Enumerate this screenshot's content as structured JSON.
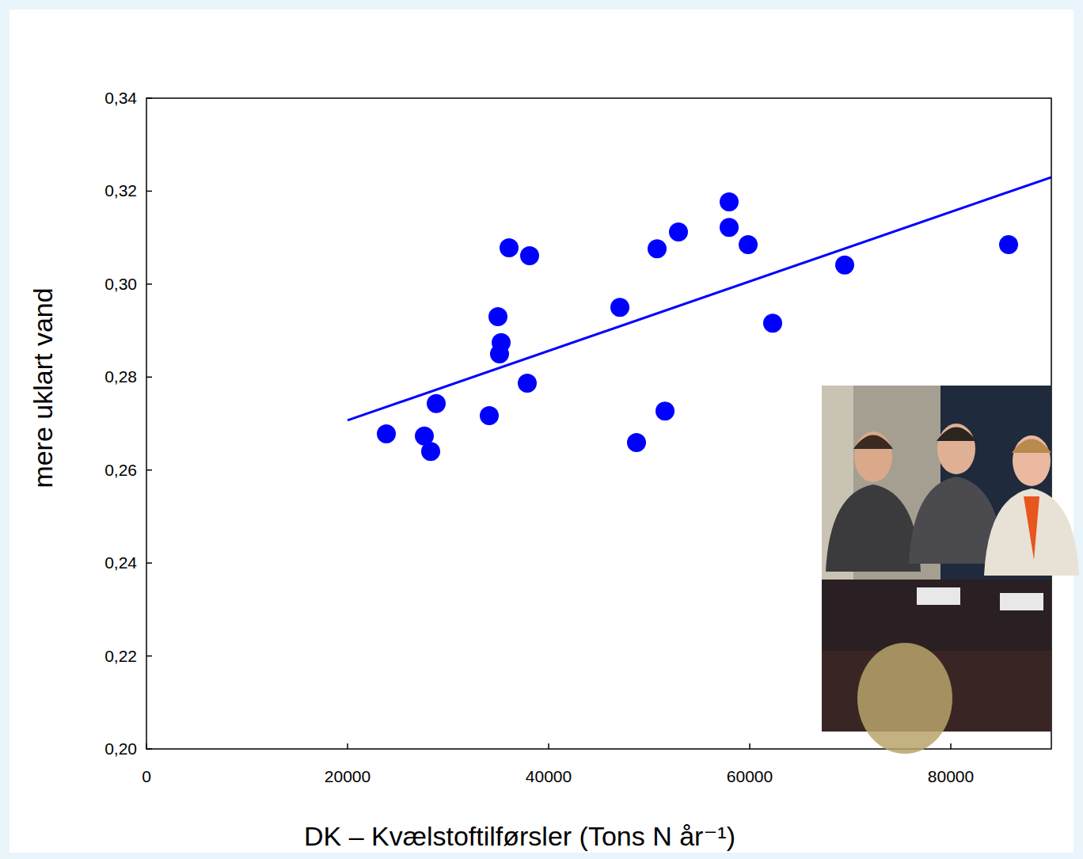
{
  "chart_data": {
    "type": "scatter",
    "x_label": "DK – Kvælstoftilførsler (Tons N år⁻¹)",
    "y_label": "mere uklart vand",
    "xlim": [
      0,
      90000
    ],
    "ylim": [
      0.2,
      0.34
    ],
    "xticks": [
      0,
      20000,
      40000,
      60000,
      80000
    ],
    "yticks": [
      {
        "value": 0.2,
        "label": "0,20"
      },
      {
        "value": 0.22,
        "label": "0,22"
      },
      {
        "value": 0.24,
        "label": "0,24"
      },
      {
        "value": 0.26,
        "label": "0,26"
      },
      {
        "value": 0.28,
        "label": "0,28"
      },
      {
        "value": 0.3,
        "label": "0,30"
      },
      {
        "value": 0.32,
        "label": "0,32"
      },
      {
        "value": 0.34,
        "label": "0,34"
      }
    ],
    "grid": false,
    "series": [
      {
        "type": "scatter",
        "color": "#0000ff",
        "marker": "circle",
        "x": [
          23858,
          27638,
          28268,
          28819,
          34094,
          34961,
          35276,
          35118,
          36063,
          38110,
          37874,
          47087,
          48740,
          50787,
          51575,
          52913,
          57953,
          57953,
          59843,
          62283,
          69449,
          85748
        ],
        "values": [
          0.2678,
          0.2673,
          0.264,
          0.2743,
          0.2717,
          0.293,
          0.2874,
          0.285,
          0.3078,
          0.3061,
          0.2787,
          0.295,
          0.2659,
          0.3076,
          0.2727,
          0.3112,
          0.3177,
          0.3122,
          0.3085,
          0.2916,
          0.3041,
          0.3085
        ]
      },
      {
        "type": "line",
        "color": "#0000ff",
        "line_style": "solid",
        "x": [
          20000,
          90000
        ],
        "values": [
          0.2707,
          0.323
        ]
      }
    ]
  }
}
